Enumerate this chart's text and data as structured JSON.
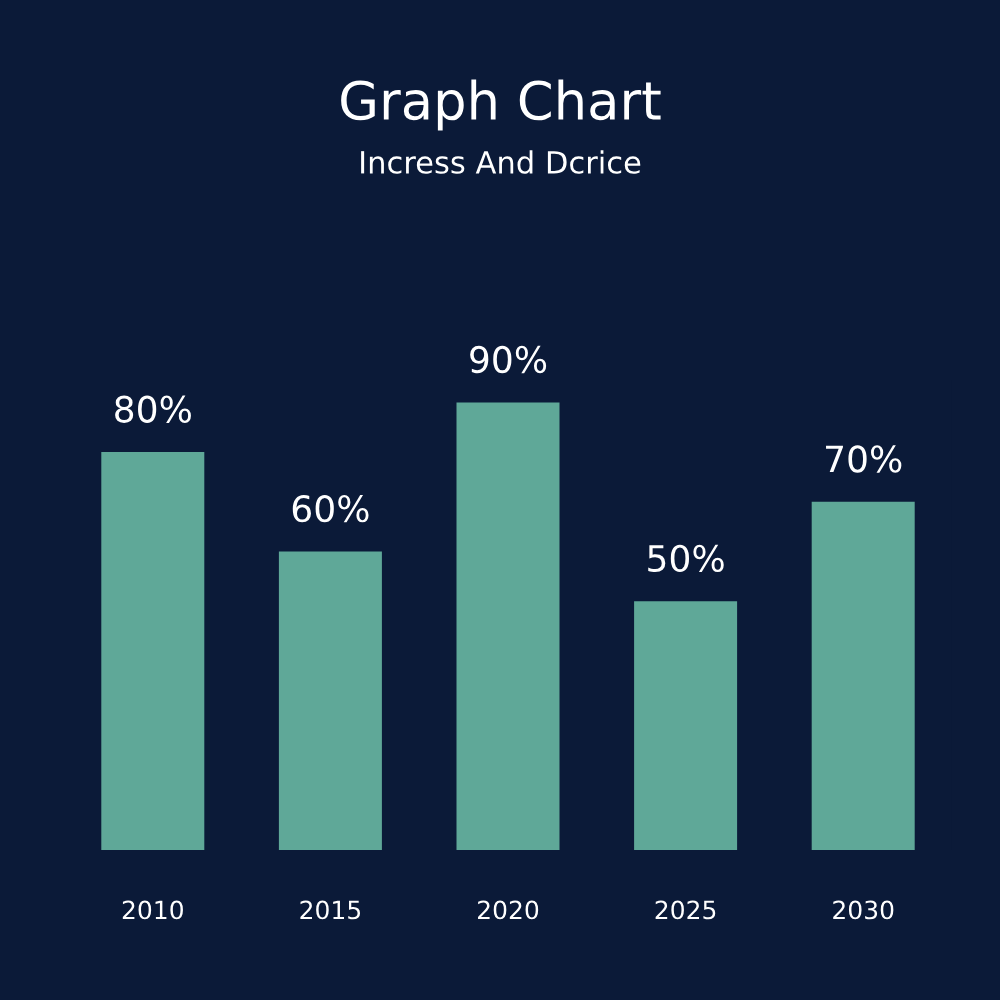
{
  "chart_data": {
    "type": "bar",
    "title": "Graph Chart",
    "subtitle": "Incress And Dcrice",
    "categories": [
      "2010",
      "2015",
      "2020",
      "2025",
      "2030"
    ],
    "values": [
      80,
      60,
      90,
      50,
      70
    ],
    "value_labels": [
      "80%",
      "60%",
      "90%",
      "50%",
      "70%"
    ],
    "color": "#5fa898",
    "tick_labels": "x"
  }
}
